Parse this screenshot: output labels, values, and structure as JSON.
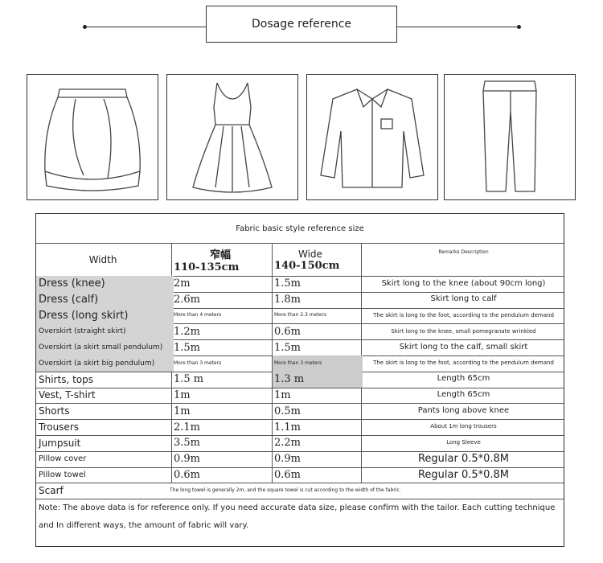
{
  "header": {
    "title": "Dosage reference"
  },
  "garments": [
    "skirt",
    "sleeveless-dress",
    "shirt",
    "trousers"
  ],
  "table": {
    "title": "Fabric basic style reference size",
    "width_label": "Width",
    "narrow_label": "窄幅",
    "narrow_range": "110-135cm",
    "wide_label": "Wide",
    "wide_range": "140-150cm",
    "remarks_label": "Remarks Description",
    "rows": [
      {
        "item": "Dress (knee)",
        "narrow": "2m",
        "wide": "1.5m",
        "remark": "Skirt long to the knee (about 90cm long)"
      },
      {
        "item": "Dress (calf)",
        "narrow": "2.6m",
        "wide": "1.8m",
        "remark": "Skirt long to calf"
      },
      {
        "item": "Dress (long skirt)",
        "narrow": "More than 4 meters",
        "wide": "More than 2.3 meters",
        "remark": "The skirt is long to the foot, according to the pendulum demand"
      },
      {
        "item": "Overskirt (straight skirt)",
        "narrow": "1.2m",
        "wide": "0.6m",
        "remark": "Skirt long to the knee, small pomegranate wrinkled"
      },
      {
        "item": "Overskirt (a skirt small pendulum)",
        "narrow": "1.5m",
        "wide": "1.5m",
        "remark": "Skirt long to the calf, small skirt"
      },
      {
        "item": "Overskirt (a skirt big pendulum)",
        "narrow": "More than 3 meters",
        "wide": "More than 3 meters",
        "remark": "The skirt is long to the foot, according to the pendulum demand"
      },
      {
        "item": "Shirts, tops",
        "narrow": "1.5 m",
        "wide": "1.3 m",
        "remark": "Length 65cm"
      },
      {
        "item": "Vest, T-shirt",
        "narrow": "1m",
        "wide": "1m",
        "remark": "Length 65cm"
      },
      {
        "item": "Shorts",
        "narrow": "1m",
        "wide": "0.5m",
        "remark": "Pants long above knee"
      },
      {
        "item": "Trousers",
        "narrow": "2.1m",
        "wide": "1.1m",
        "remark": "About 1m long trousers"
      },
      {
        "item": "Jumpsuit",
        "narrow": "3.5m",
        "wide": "2.2m",
        "remark": "Long Sleeve"
      },
      {
        "item": "Pillow cover",
        "narrow": "0.9m",
        "wide": "0.9m",
        "remark": "Regular 0.5*0.8M"
      },
      {
        "item": "Pillow towel",
        "narrow": "0.6m",
        "wide": "0.6m",
        "remark": "Regular 0.5*0.8M"
      }
    ],
    "scarf": {
      "item": "Scarf",
      "note": "The long towel is generally 2m, and the square towel is cut according to the width of the fabric."
    },
    "note": "Note: The above data is for reference only. If you need accurate data size, please confirm with the tailor. Each cutting technique and In different ways, the amount of fabric will vary."
  }
}
